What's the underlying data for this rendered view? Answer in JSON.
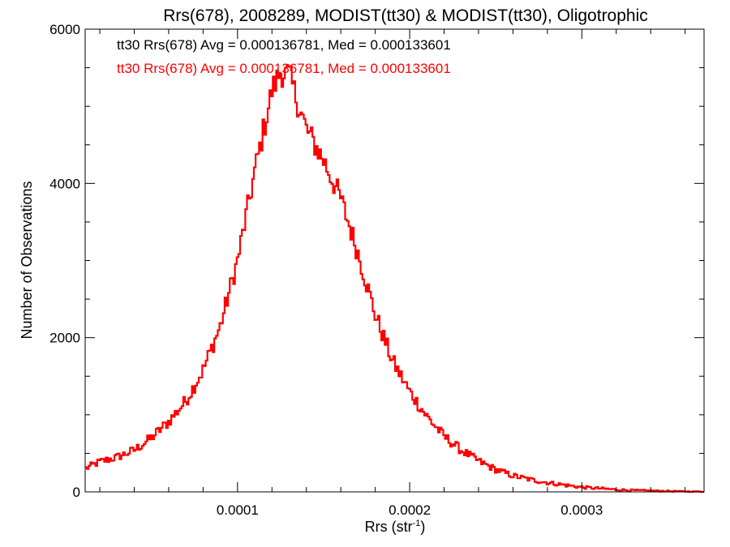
{
  "chart_data": {
    "type": "histogram",
    "title": "Rrs(678), 2008289, MODIST(tt30) & MODIST(tt30), Oligotrophic",
    "xlabel": "Rrs (str",
    "xlabel_sup": "-1",
    "xlabel_close": ")",
    "ylabel": "Number of Observations",
    "xlim": [
      1.15e-05,
      0.000371
    ],
    "ylim": [
      0,
      6000
    ],
    "x_ticks": [
      0.0001,
      0.0002,
      0.0003
    ],
    "x_tick_labels": [
      "0.0001",
      "0.0002",
      "0.0003"
    ],
    "y_ticks": [
      0,
      2000,
      4000,
      6000
    ],
    "y_tick_labels": [
      "0",
      "2000",
      "4000",
      "6000"
    ],
    "bin_width": 1e-06,
    "grid": false,
    "legend": [
      {
        "text": "tt30 Rrs(678) Avg = 0.000136781, Med = 0.000133601",
        "color": "#000000"
      },
      {
        "text": "tt30 Rrs(678) Avg = 0.000136781, Med = 0.000133601",
        "color": "#ff0000"
      }
    ],
    "series": [
      {
        "color": "#ff0000",
        "profile_x": [
          1.15e-05,
          2e-05,
          3e-05,
          4e-05,
          5e-05,
          6e-05,
          7e-05,
          8e-05,
          9e-05,
          0.0001,
          0.00011,
          0.00012,
          0.000125,
          0.00013,
          0.00014,
          0.00015,
          0.00016,
          0.00017,
          0.00018,
          0.00019,
          0.0002,
          0.00021,
          0.00022,
          0.00023,
          0.00024,
          0.00025,
          0.00026,
          0.00027,
          0.00028,
          0.00029,
          0.0003,
          0.00031,
          0.00032,
          0.00033,
          0.00034,
          0.00035,
          0.00036,
          0.000371
        ],
        "profile_y": [
          300,
          390,
          450,
          540,
          700,
          910,
          1180,
          1580,
          2150,
          3000,
          4150,
          5200,
          5450,
          5400,
          4700,
          4300,
          3800,
          3100,
          2300,
          1700,
          1300,
          980,
          720,
          540,
          400,
          290,
          210,
          160,
          120,
          90,
          60,
          45,
          30,
          20,
          15,
          10,
          6,
          3
        ]
      }
    ]
  }
}
